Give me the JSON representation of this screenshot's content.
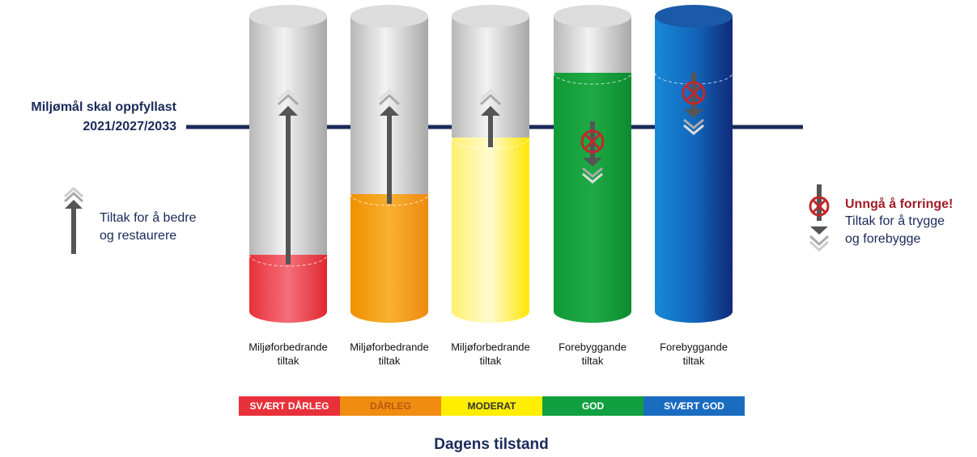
{
  "goal_line": {
    "lines": [
      "Miljømål skal oppfyllast",
      "2021/2027/2033"
    ]
  },
  "legend_improve": {
    "lines": [
      "Tiltak for å bedre",
      "og restaurere"
    ]
  },
  "legend_protect": {
    "title": "Unngå å forringe!",
    "lines": [
      "Tiltak for å trygge",
      "og forebygge"
    ]
  },
  "cylinders": [
    {
      "lines": [
        "Miljøforbedrande",
        "tiltak"
      ]
    },
    {
      "lines": [
        "Miljøforbedrande",
        "tiltak"
      ]
    },
    {
      "lines": [
        "Miljøforbedrande",
        "tiltak"
      ]
    },
    {
      "lines": [
        "Forebyggande",
        "tiltak"
      ]
    },
    {
      "lines": [
        "Forebyggande",
        "tiltak"
      ]
    }
  ],
  "status_bar": {
    "segments": [
      "SVÆRT DÅRLEG",
      "DÅRLEG",
      "MODERAT",
      "GOD",
      "SVÆRT GOD"
    ]
  },
  "footer": "Dagens tilstand"
}
